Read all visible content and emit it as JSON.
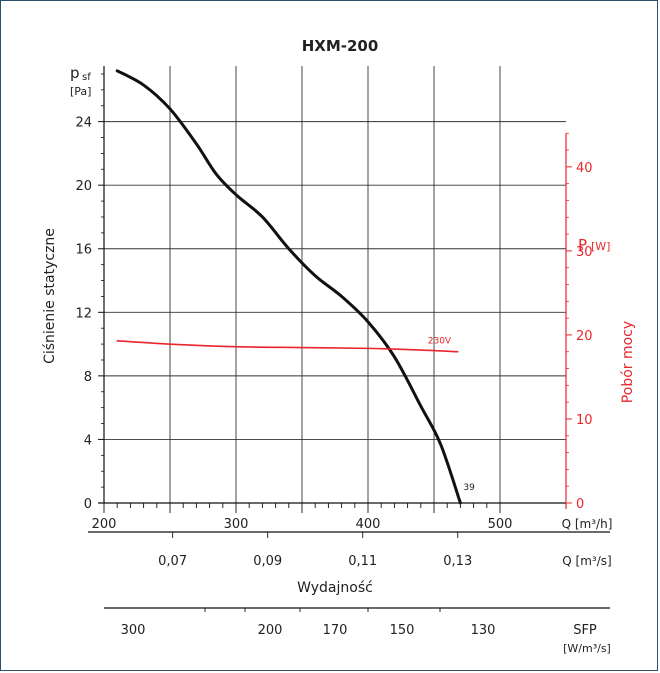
{
  "chart_data": {
    "type": "line",
    "title": "HXM-200",
    "y_left": {
      "label": "Ciśnienie statyczne",
      "unit_symbol": "p",
      "unit_sub": "sf",
      "unit": "[Pa]",
      "ticks": [
        0,
        4,
        8,
        12,
        16,
        20,
        24
      ],
      "range": [
        0,
        27.5
      ]
    },
    "y_right": {
      "label": "Pobór mocy",
      "unit_symbol": "P",
      "unit": "[W]",
      "ticks": [
        0,
        10,
        20,
        30,
        40
      ],
      "range": [
        0,
        52
      ]
    },
    "x_main": {
      "unit": "Q [m³/h]",
      "ticks": [
        200,
        300,
        400,
        500
      ],
      "range": [
        200,
        550
      ]
    },
    "x_secondary": {
      "unit": "Q [m³/s]",
      "tick_labels": [
        "0,07",
        "0,09",
        "0,11",
        "0,13"
      ],
      "tick_values": [
        0.07,
        0.09,
        0.11,
        0.13
      ],
      "label": "Wydajność"
    },
    "sfp_axis": {
      "unit": "SFP",
      "unit2": "[W/m³/s]",
      "tick_labels": [
        "300",
        "200",
        "170",
        "150",
        "130"
      ],
      "tick_values": [
        300,
        200,
        170,
        150,
        130
      ]
    },
    "series": [
      {
        "name": "pressure",
        "color": "#111111",
        "axis": "left",
        "x": [
          210,
          230,
          250,
          270,
          285,
          300,
          320,
          340,
          360,
          380,
          400,
          420,
          440,
          455,
          470
        ],
        "y": [
          27.2,
          26.3,
          24.8,
          22.6,
          20.7,
          19.4,
          18.0,
          16.0,
          14.3,
          13.0,
          11.4,
          9.2,
          6.1,
          3.7,
          0
        ]
      },
      {
        "name": "230V",
        "color": "#e8262b",
        "axis": "right",
        "x": [
          210,
          250,
          300,
          350,
          400,
          440,
          468
        ],
        "y": [
          19.3,
          18.9,
          18.6,
          18.5,
          18.4,
          18.2,
          18.0
        ]
      }
    ],
    "annotations": {
      "curve_end_label": "39",
      "voltage_label": "230V"
    },
    "grid": true
  }
}
